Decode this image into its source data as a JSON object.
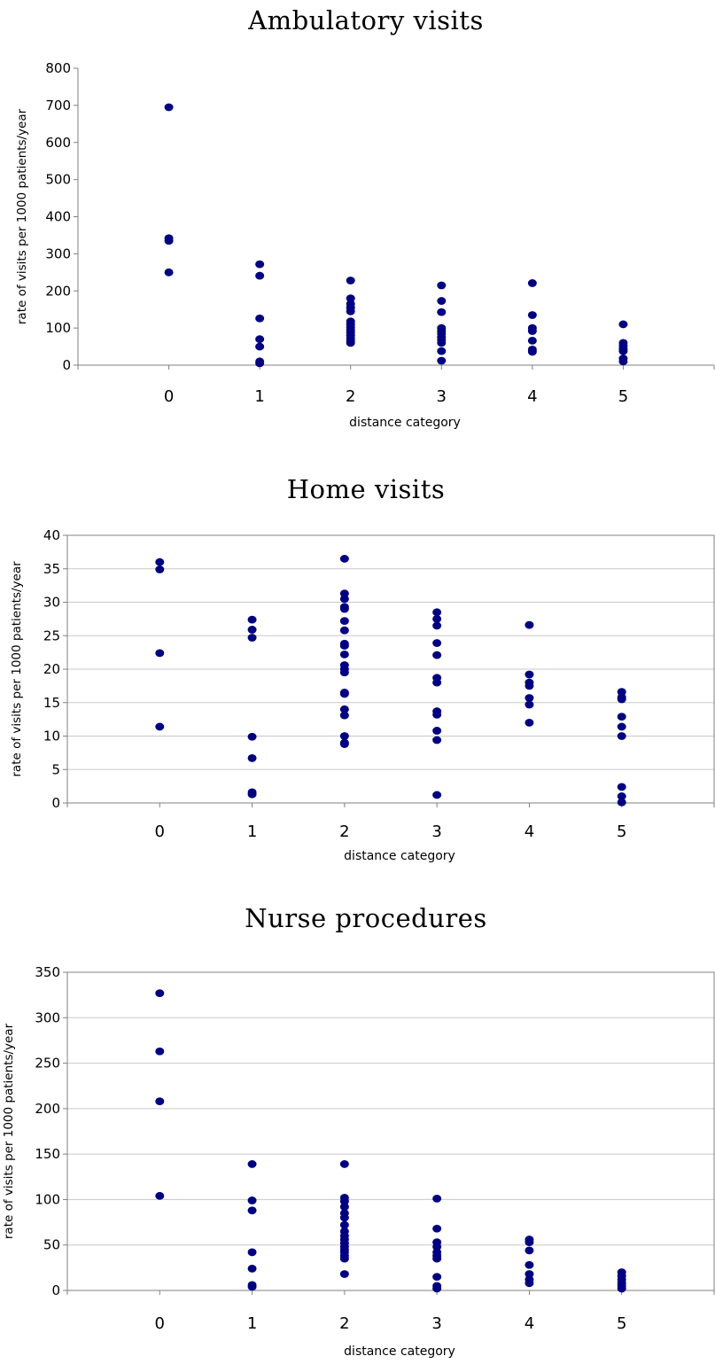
{
  "chart_data": [
    {
      "type": "scatter",
      "title": "Ambulatory visits",
      "xlabel": "distance category",
      "ylabel": "rate of visits per 1000 patients/year",
      "x_ticks": [
        "0",
        "1",
        "2",
        "3",
        "4",
        "5"
      ],
      "y_ticks": [
        "0",
        "100",
        "200",
        "300",
        "400",
        "500",
        "600",
        "700",
        "800"
      ],
      "xlim": [
        -1,
        6
      ],
      "ylim": [
        0,
        800
      ],
      "grid": false,
      "legend": "none",
      "marker_color": "#000080",
      "points": [
        [
          0,
          695
        ],
        [
          0,
          342
        ],
        [
          0,
          335
        ],
        [
          0,
          250
        ],
        [
          1,
          272
        ],
        [
          1,
          241
        ],
        [
          1,
          126
        ],
        [
          1,
          70
        ],
        [
          1,
          50
        ],
        [
          1,
          10
        ],
        [
          1,
          5
        ],
        [
          2,
          228
        ],
        [
          2,
          180
        ],
        [
          2,
          165
        ],
        [
          2,
          155
        ],
        [
          2,
          145
        ],
        [
          2,
          118
        ],
        [
          2,
          110
        ],
        [
          2,
          102
        ],
        [
          2,
          95
        ],
        [
          2,
          88
        ],
        [
          2,
          80
        ],
        [
          2,
          72
        ],
        [
          2,
          65
        ],
        [
          2,
          60
        ],
        [
          3,
          215
        ],
        [
          3,
          173
        ],
        [
          3,
          143
        ],
        [
          3,
          100
        ],
        [
          3,
          92
        ],
        [
          3,
          85
        ],
        [
          3,
          76
        ],
        [
          3,
          68
        ],
        [
          3,
          60
        ],
        [
          3,
          38
        ],
        [
          3,
          12
        ],
        [
          4,
          221
        ],
        [
          4,
          135
        ],
        [
          4,
          100
        ],
        [
          4,
          92
        ],
        [
          4,
          66
        ],
        [
          4,
          42
        ],
        [
          4,
          36
        ],
        [
          5,
          110
        ],
        [
          5,
          60
        ],
        [
          5,
          52
        ],
        [
          5,
          44
        ],
        [
          5,
          38
        ],
        [
          5,
          18
        ],
        [
          5,
          10
        ]
      ]
    },
    {
      "type": "scatter",
      "title": "Home visits",
      "xlabel": "distance category",
      "ylabel": "rate of visits per 1000 patients/year",
      "x_ticks": [
        "0",
        "1",
        "2",
        "3",
        "4",
        "5"
      ],
      "y_ticks": [
        "0",
        "5",
        "10",
        "15",
        "20",
        "25",
        "30",
        "35",
        "40"
      ],
      "xlim": [
        -1,
        6
      ],
      "ylim": [
        0,
        40
      ],
      "grid": true,
      "legend": "none",
      "marker_color": "#000080",
      "points": [
        [
          0,
          36.0
        ],
        [
          0,
          34.9
        ],
        [
          0,
          22.4
        ],
        [
          0,
          11.4
        ],
        [
          1,
          27.4
        ],
        [
          1,
          25.9
        ],
        [
          1,
          24.7
        ],
        [
          1,
          9.9
        ],
        [
          1,
          6.7
        ],
        [
          1,
          1.6
        ],
        [
          1,
          1.3
        ],
        [
          2,
          36.5
        ],
        [
          2,
          31.3
        ],
        [
          2,
          30.5
        ],
        [
          2,
          29.3
        ],
        [
          2,
          29.0
        ],
        [
          2,
          27.2
        ],
        [
          2,
          25.8
        ],
        [
          2,
          23.8
        ],
        [
          2,
          23.5
        ],
        [
          2,
          22.2
        ],
        [
          2,
          20.6
        ],
        [
          2,
          20.0
        ],
        [
          2,
          19.5
        ],
        [
          2,
          16.5
        ],
        [
          2,
          16.3
        ],
        [
          2,
          14.0
        ],
        [
          2,
          13.1
        ],
        [
          2,
          10.0
        ],
        [
          2,
          9.0
        ],
        [
          2,
          8.8
        ],
        [
          3,
          28.5
        ],
        [
          3,
          27.5
        ],
        [
          3,
          26.5
        ],
        [
          3,
          23.9
        ],
        [
          3,
          22.1
        ],
        [
          3,
          18.7
        ],
        [
          3,
          18.0
        ],
        [
          3,
          13.7
        ],
        [
          3,
          13.2
        ],
        [
          3,
          10.8
        ],
        [
          3,
          9.4
        ],
        [
          3,
          1.2
        ],
        [
          4,
          26.6
        ],
        [
          4,
          19.2
        ],
        [
          4,
          18.0
        ],
        [
          4,
          17.5
        ],
        [
          4,
          15.7
        ],
        [
          4,
          14.7
        ],
        [
          4,
          12.0
        ],
        [
          5,
          16.6
        ],
        [
          5,
          15.8
        ],
        [
          5,
          15.5
        ],
        [
          5,
          12.9
        ],
        [
          5,
          11.4
        ],
        [
          5,
          10.0
        ],
        [
          5,
          2.4
        ],
        [
          5,
          1.0
        ],
        [
          5,
          0.1
        ]
      ]
    },
    {
      "type": "scatter",
      "title": "Nurse procedures",
      "xlabel": "distance category",
      "ylabel": "rate of visits per 1000 patients/year",
      "x_ticks": [
        "0",
        "1",
        "2",
        "3",
        "4",
        "5"
      ],
      "y_ticks": [
        "0",
        "50",
        "100",
        "150",
        "200",
        "250",
        "300",
        "350"
      ],
      "xlim": [
        -1,
        6
      ],
      "ylim": [
        0,
        350
      ],
      "grid": true,
      "legend": "none",
      "marker_color": "#000080",
      "points": [
        [
          0,
          327
        ],
        [
          0,
          263
        ],
        [
          0,
          208
        ],
        [
          0,
          104
        ],
        [
          1,
          139
        ],
        [
          1,
          99
        ],
        [
          1,
          88
        ],
        [
          1,
          42
        ],
        [
          1,
          24
        ],
        [
          1,
          6
        ],
        [
          1,
          4
        ],
        [
          2,
          139
        ],
        [
          2,
          102
        ],
        [
          2,
          98
        ],
        [
          2,
          92
        ],
        [
          2,
          85
        ],
        [
          2,
          80
        ],
        [
          2,
          72
        ],
        [
          2,
          65
        ],
        [
          2,
          60
        ],
        [
          2,
          56
        ],
        [
          2,
          52
        ],
        [
          2,
          48
        ],
        [
          2,
          45
        ],
        [
          2,
          42
        ],
        [
          2,
          38
        ],
        [
          2,
          35
        ],
        [
          2,
          18
        ],
        [
          3,
          101
        ],
        [
          3,
          68
        ],
        [
          3,
          53
        ],
        [
          3,
          48
        ],
        [
          3,
          42
        ],
        [
          3,
          38
        ],
        [
          3,
          35
        ],
        [
          3,
          15
        ],
        [
          3,
          5
        ],
        [
          3,
          2
        ],
        [
          4,
          56
        ],
        [
          4,
          53
        ],
        [
          4,
          44
        ],
        [
          4,
          28
        ],
        [
          4,
          18
        ],
        [
          4,
          12
        ],
        [
          4,
          8
        ],
        [
          5,
          20
        ],
        [
          5,
          16
        ],
        [
          5,
          12
        ],
        [
          5,
          8
        ],
        [
          5,
          5
        ],
        [
          5,
          2
        ]
      ]
    }
  ]
}
